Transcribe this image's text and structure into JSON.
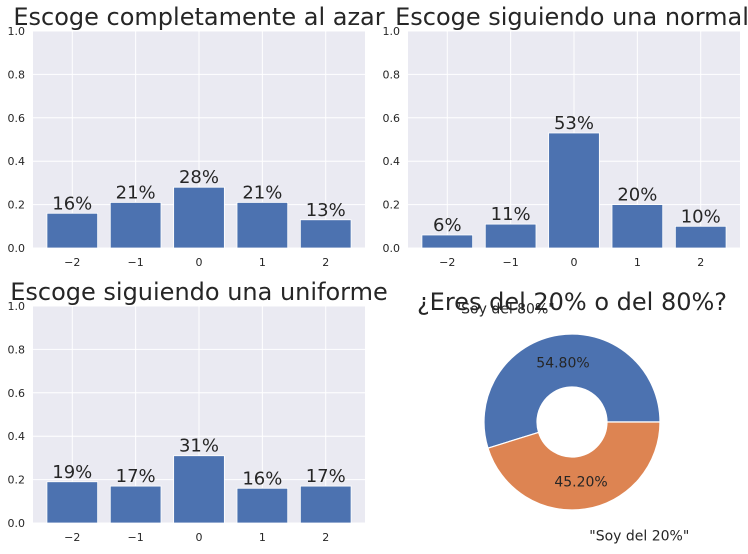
{
  "chart_data": [
    {
      "type": "bar",
      "title": "Escoge completamente al azar",
      "categories": [
        "−2",
        "−1",
        "0",
        "1",
        "2"
      ],
      "values": [
        0.16,
        0.21,
        0.28,
        0.21,
        0.13
      ],
      "labels": [
        "16%",
        "21%",
        "28%",
        "21%",
        "13%"
      ],
      "ylim": [
        0,
        1.0
      ],
      "yticks": [
        "0.0",
        "0.2",
        "0.4",
        "0.6",
        "0.8",
        "1.0"
      ],
      "grid": true,
      "bar_color": "#4c72b0",
      "background": "#eaeaf2"
    },
    {
      "type": "bar",
      "title": "Escoge siguiendo una normal",
      "categories": [
        "−2",
        "−1",
        "0",
        "1",
        "2"
      ],
      "values": [
        0.06,
        0.11,
        0.53,
        0.2,
        0.1
      ],
      "labels": [
        "6%",
        "11%",
        "53%",
        "20%",
        "10%"
      ],
      "ylim": [
        0,
        1.0
      ],
      "yticks": [
        "0.0",
        "0.2",
        "0.4",
        "0.6",
        "0.8",
        "1.0"
      ],
      "grid": true,
      "bar_color": "#4c72b0",
      "background": "#eaeaf2"
    },
    {
      "type": "bar",
      "title": "Escoge siguiendo una uniforme",
      "categories": [
        "−2",
        "−1",
        "0",
        "1",
        "2"
      ],
      "values": [
        0.19,
        0.17,
        0.31,
        0.16,
        0.17
      ],
      "labels": [
        "19%",
        "17%",
        "31%",
        "16%",
        "17%"
      ],
      "ylim": [
        0,
        1.0
      ],
      "yticks": [
        "0.0",
        "0.2",
        "0.4",
        "0.6",
        "0.8",
        "1.0"
      ],
      "grid": true,
      "bar_color": "#4c72b0",
      "background": "#eaeaf2"
    },
    {
      "type": "pie",
      "title": "¿Eres del 20% o del 80%?",
      "slices": [
        {
          "label": "\"Soy del 80%\"",
          "value": 54.8,
          "pct_label": "54.80%",
          "color": "#4c72b0"
        },
        {
          "label": "\"Soy del 20%\"",
          "value": 45.2,
          "pct_label": "45.20%",
          "color": "#dd8452"
        }
      ],
      "donut": true
    }
  ]
}
